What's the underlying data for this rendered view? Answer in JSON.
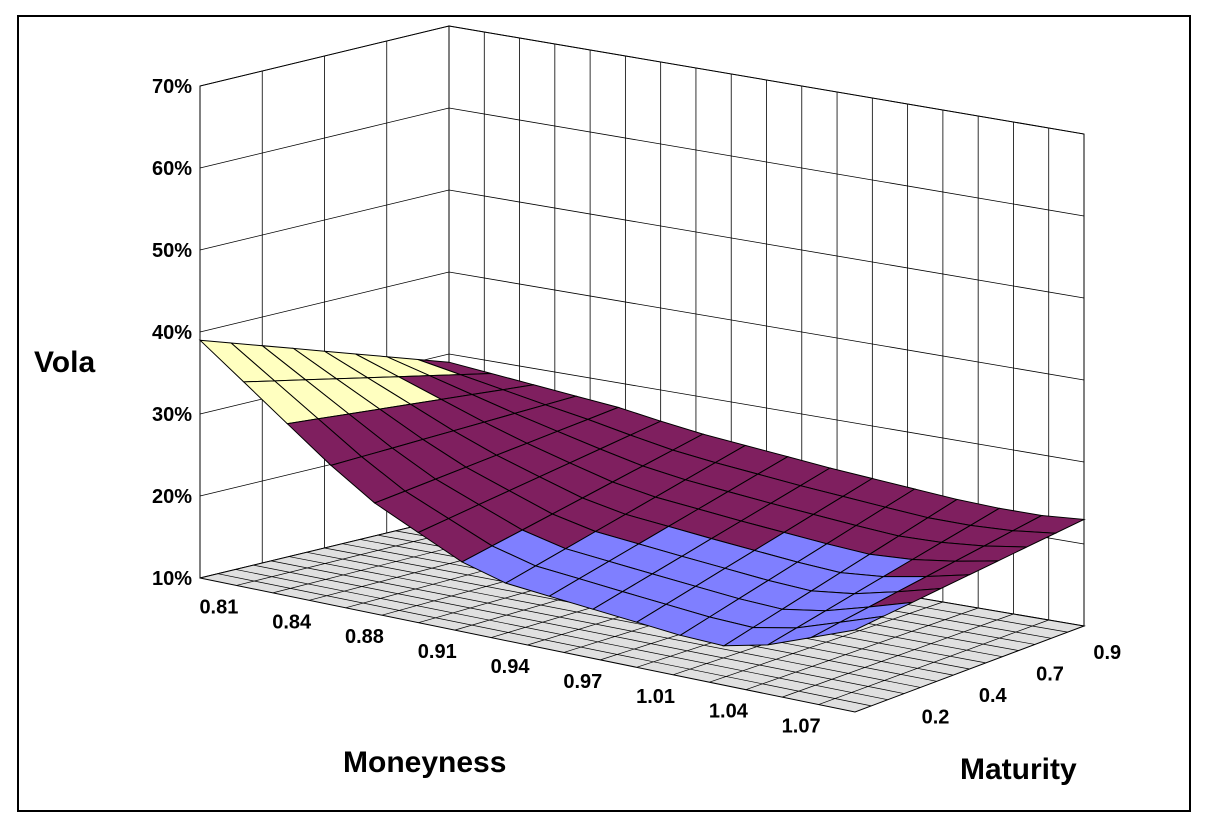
{
  "chart_data": {
    "type": "surface",
    "title": "",
    "zlabel": "Vola",
    "xlabel": "Moneyness",
    "ylabel": "Maturity",
    "zlim": [
      0.1,
      0.7
    ],
    "z_ticks": [
      "10%",
      "20%",
      "30%",
      "40%",
      "50%",
      "60%",
      "70%"
    ],
    "x_tick_labels": [
      "0.81",
      "0.84",
      "0.88",
      "0.91",
      "0.94",
      "0.97",
      "1.01",
      "1.04",
      "1.07"
    ],
    "y_tick_labels": [
      "0.2",
      "0.4",
      "0.7",
      "0.9"
    ],
    "grid": true,
    "band_colors": {
      "10%-20%": "#7f7fff",
      "20%-30%": "#7f1f5f",
      "30%-40%": "#ffffc0"
    },
    "wall_color": "#ffffff",
    "floor_color": "#e0e0e0",
    "moneyness_front_row_vola": [
      0.39,
      0.35,
      0.31,
      0.27,
      0.235,
      0.21,
      0.185,
      0.17,
      0.165,
      0.16,
      0.155,
      0.15,
      0.148,
      0.16,
      0.18,
      0.2
    ],
    "moneyness_back_row_vola": [
      0.29,
      0.285,
      0.28,
      0.275,
      0.27,
      0.262,
      0.255,
      0.25,
      0.245,
      0.24,
      0.236,
      0.232,
      0.228,
      0.226,
      0.226,
      0.23
    ]
  }
}
